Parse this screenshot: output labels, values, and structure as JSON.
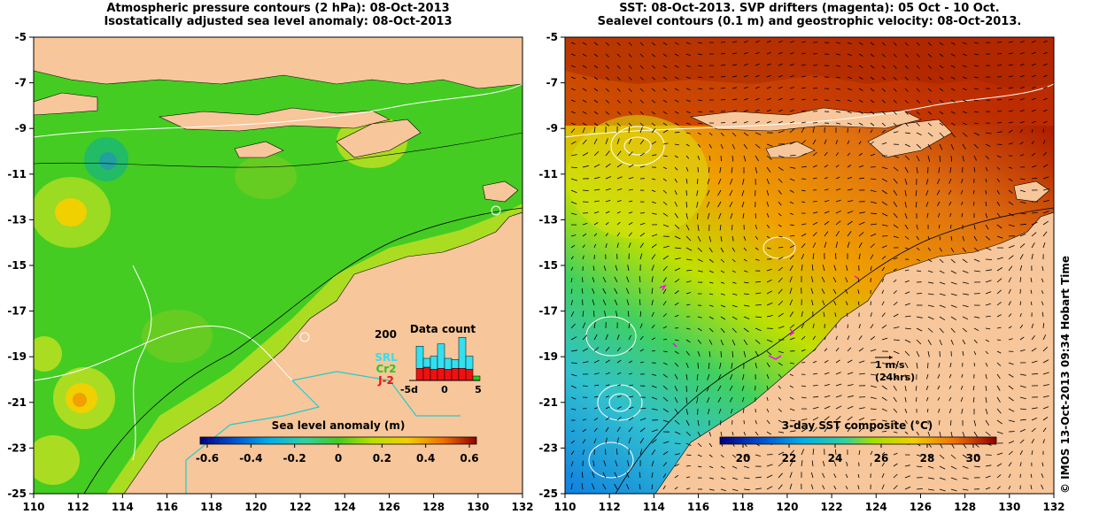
{
  "left_panel": {
    "title_line1": "Atmospheric pressure contours (2 hPa): 08-Oct-2013",
    "title_line2": "Isostatically adjusted sea level anomaly: 08-Oct-2013",
    "colorbar_title": "Sea level anomaly (m)",
    "colorbar_ticks": [
      "-0.6",
      "-0.4",
      "-0.2",
      "0",
      "0.2",
      "0.4",
      "0.6"
    ],
    "inset": {
      "title": "Data count",
      "y_max_label": "200",
      "x_ticks": [
        "-5d",
        "0",
        "5"
      ],
      "legend": [
        {
          "label": "SRL",
          "color": "#33e0f0"
        },
        {
          "label": "Cr2",
          "color": "#22cc22"
        },
        {
          "label": "J-2",
          "color": "#ee1111"
        }
      ],
      "bars": [
        {
          "day": -4,
          "j2": 55,
          "cr2": 0,
          "srl": 100
        },
        {
          "day": -3,
          "j2": 60,
          "cr2": 0,
          "srl": 40
        },
        {
          "day": -2,
          "j2": 50,
          "cr2": 0,
          "srl": 60
        },
        {
          "day": -1,
          "j2": 55,
          "cr2": 0,
          "srl": 110
        },
        {
          "day": 0,
          "j2": 50,
          "cr2": 0,
          "srl": 50
        },
        {
          "day": 1,
          "j2": 55,
          "cr2": 0,
          "srl": 40
        },
        {
          "day": 2,
          "j2": 55,
          "cr2": 0,
          "srl": 140
        },
        {
          "day": 3,
          "j2": 50,
          "cr2": 0,
          "srl": 60
        },
        {
          "day": 4,
          "j2": 0,
          "cr2": 20,
          "srl": 0
        }
      ]
    }
  },
  "right_panel": {
    "title_line1": "SST: 08-Oct-2013. SVP drifters (magenta): 05 Oct - 10 Oct.",
    "title_line2": "Sealevel contours (0.1 m) and geostrophic velocity: 08-Oct-2013.",
    "colorbar_title": "3-day SST composite (°C)",
    "colorbar_ticks": [
      "20",
      "22",
      "24",
      "26",
      "28",
      "30"
    ],
    "scale_label_1": "1 m/s",
    "scale_label_2": "(24hrs)"
  },
  "axes": {
    "lon_ticks": [
      "110",
      "112",
      "114",
      "116",
      "118",
      "120",
      "122",
      "124",
      "126",
      "128",
      "130",
      "132"
    ],
    "lat_ticks": [
      "-5",
      "-7",
      "-9",
      "-11",
      "-13",
      "-15",
      "-17",
      "-19",
      "-21",
      "-23",
      "-25"
    ]
  },
  "credit": "© IMOS 13-Oct-2013 09:34 Hobart Time",
  "colors": {
    "land": "#f7c69a",
    "sla_ocean": "#44cc22",
    "sst_warm": "#e07010",
    "sst_cool": "#33b8e8"
  }
}
